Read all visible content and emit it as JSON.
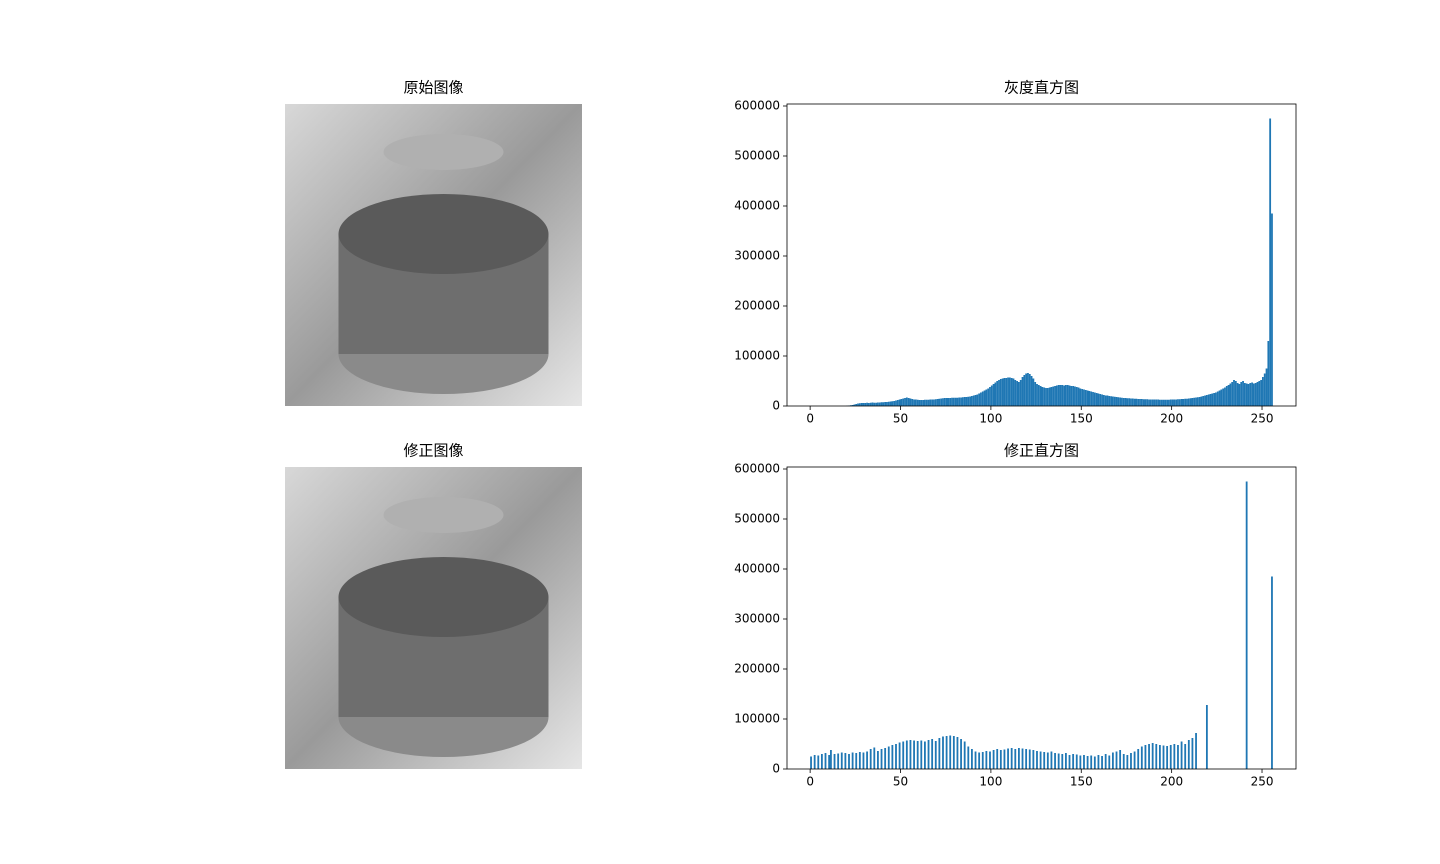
{
  "chart_data": [
    {
      "type": "image",
      "title": "原始图像"
    },
    {
      "type": "histogram",
      "title": "灰度直方图",
      "color": "#1f77b4",
      "bins": [
        0,
        1,
        2,
        3,
        4,
        5,
        6,
        7,
        8,
        9,
        10,
        11,
        12,
        13,
        14,
        15,
        16,
        17,
        18,
        19,
        20,
        21,
        22,
        23,
        24,
        25,
        26,
        27,
        28,
        29,
        30,
        31,
        32,
        33,
        34,
        35,
        36,
        37,
        38,
        39,
        40,
        41,
        42,
        43,
        44,
        45,
        46,
        47,
        48,
        49,
        50,
        51,
        52,
        53,
        54,
        55,
        56,
        57,
        58,
        59,
        60,
        61,
        62,
        63,
        64,
        65,
        66,
        67,
        68,
        69,
        70,
        71,
        72,
        73,
        74,
        75,
        76,
        77,
        78,
        79,
        80,
        81,
        82,
        83,
        84,
        85,
        86,
        87,
        88,
        89,
        90,
        91,
        92,
        93,
        94,
        95,
        96,
        97,
        98,
        99,
        100,
        101,
        102,
        103,
        104,
        105,
        106,
        107,
        108,
        109,
        110,
        111,
        112,
        113,
        114,
        115,
        116,
        117,
        118,
        119,
        120,
        121,
        122,
        123,
        124,
        125,
        126,
        127,
        128,
        129,
        130,
        131,
        132,
        133,
        134,
        135,
        136,
        137,
        138,
        139,
        140,
        141,
        142,
        143,
        144,
        145,
        146,
        147,
        148,
        149,
        150,
        151,
        152,
        153,
        154,
        155,
        156,
        157,
        158,
        159,
        160,
        161,
        162,
        163,
        164,
        165,
        166,
        167,
        168,
        169,
        170,
        171,
        172,
        173,
        174,
        175,
        176,
        177,
        178,
        179,
        180,
        181,
        182,
        183,
        184,
        185,
        186,
        187,
        188,
        189,
        190,
        191,
        192,
        193,
        194,
        195,
        196,
        197,
        198,
        199,
        200,
        201,
        202,
        203,
        204,
        205,
        206,
        207,
        208,
        209,
        210,
        211,
        212,
        213,
        214,
        215,
        216,
        217,
        218,
        219,
        220,
        221,
        222,
        223,
        224,
        225,
        226,
        227,
        228,
        229,
        230,
        231,
        232,
        233,
        234,
        235,
        236,
        237,
        238,
        239,
        240,
        241,
        242,
        243,
        244,
        245,
        246,
        247,
        248,
        249,
        250,
        251,
        252,
        253,
        254,
        255,
        256
      ],
      "values": [
        0,
        0,
        0,
        0,
        0,
        0,
        0,
        0,
        0,
        0,
        0,
        0,
        0,
        0,
        0,
        0,
        0,
        0,
        0,
        0,
        500,
        1000,
        1500,
        2000,
        3000,
        4000,
        5000,
        5500,
        6000,
        6000,
        6000,
        6500,
        6000,
        6500,
        7000,
        6500,
        6500,
        7000,
        7000,
        7500,
        7500,
        8000,
        8000,
        8500,
        9000,
        9500,
        10000,
        11000,
        12000,
        13000,
        14000,
        15000,
        16000,
        17000,
        16000,
        15000,
        14000,
        13000,
        13000,
        12500,
        12000,
        12000,
        12000,
        12500,
        12500,
        12500,
        13000,
        13000,
        13000,
        13500,
        14000,
        14500,
        15000,
        15500,
        16000,
        16000,
        16000,
        16000,
        16500,
        16500,
        16500,
        16500,
        17000,
        17000,
        17500,
        18000,
        18000,
        18500,
        19000,
        20000,
        21000,
        22000,
        23000,
        25000,
        27000,
        29000,
        31000,
        33000,
        35000,
        38000,
        41000,
        44000,
        47000,
        50000,
        52000,
        54000,
        55000,
        56000,
        56000,
        57000,
        57000,
        56000,
        55000,
        52000,
        50000,
        48000,
        52000,
        58000,
        62000,
        65000,
        66000,
        64000,
        60000,
        55000,
        48000,
        44000,
        42000,
        40000,
        38000,
        37000,
        36000,
        36000,
        37000,
        38000,
        39000,
        40000,
        41000,
        42000,
        42000,
        42000,
        41000,
        42000,
        42000,
        41000,
        40000,
        40000,
        39000,
        38000,
        37000,
        35000,
        34000,
        33000,
        32000,
        31000,
        30000,
        29000,
        28000,
        27000,
        26000,
        25000,
        24000,
        23000,
        22000,
        21000,
        21000,
        20000,
        19500,
        19000,
        18500,
        18000,
        17500,
        17000,
        16500,
        16000,
        16000,
        15500,
        15500,
        15000,
        15000,
        14500,
        14500,
        14000,
        14000,
        14000,
        13500,
        13500,
        13500,
        13000,
        13000,
        13000,
        13000,
        13000,
        13000,
        12500,
        12500,
        12500,
        12500,
        12500,
        12500,
        13000,
        13000,
        13000,
        13000,
        13500,
        13500,
        14000,
        14000,
        14500,
        14500,
        15000,
        15500,
        16000,
        16500,
        17000,
        17500,
        18000,
        19000,
        20000,
        21000,
        22000,
        23000,
        24000,
        25000,
        26000,
        27000,
        29000,
        31000,
        33000,
        35000,
        37000,
        40000,
        42000,
        45000,
        48000,
        52000,
        50000,
        46000,
        44000,
        48000,
        50000,
        46000,
        45000,
        44000,
        46000,
        47000,
        45000,
        46000,
        48000,
        50000,
        52000,
        58000,
        65000,
        75000,
        130000,
        575000,
        385000
      ],
      "xlim": [
        -12.8,
        268.8
      ],
      "xticks": [
        0,
        50,
        100,
        150,
        200,
        250
      ],
      "ylim": [
        0,
        604000
      ],
      "yticks": [
        0,
        100000,
        200000,
        300000,
        400000,
        500000,
        600000
      ]
    },
    {
      "type": "image",
      "title": "修正图像"
    },
    {
      "type": "histogram",
      "title": "修正直方图",
      "color": "#1f77b4",
      "bins": [
        0,
        1,
        2,
        3,
        4,
        5,
        6,
        7,
        8,
        9,
        10,
        11,
        12,
        13,
        14,
        15,
        16,
        17,
        18,
        19,
        20,
        21,
        22,
        23,
        24,
        25,
        26,
        27,
        28,
        29,
        30,
        31,
        32,
        33,
        34,
        35,
        36,
        37,
        38,
        39,
        40,
        41,
        42,
        43,
        44,
        45,
        46,
        47,
        48,
        49,
        50,
        51,
        52,
        53,
        54,
        55,
        56,
        57,
        58,
        59,
        60,
        61,
        62,
        63,
        64,
        65,
        66,
        67,
        68,
        69,
        70,
        71,
        72,
        73,
        74,
        75,
        76,
        77,
        78,
        79,
        80,
        81,
        82,
        83,
        84,
        85,
        86,
        87,
        88,
        89,
        90,
        91,
        92,
        93,
        94,
        95,
        96,
        97,
        98,
        99,
        100,
        101,
        102,
        103,
        104,
        105,
        106,
        107,
        108,
        109,
        110,
        111,
        112,
        113,
        114,
        115,
        116,
        117,
        118,
        119,
        120,
        121,
        122,
        123,
        124,
        125,
        126,
        127,
        128,
        129,
        130,
        131,
        132,
        133,
        134,
        135,
        136,
        137,
        138,
        139,
        140,
        141,
        142,
        143,
        144,
        145,
        146,
        147,
        148,
        149,
        150,
        151,
        152,
        153,
        154,
        155,
        156,
        157,
        158,
        159,
        160,
        161,
        162,
        163,
        164,
        165,
        166,
        167,
        168,
        169,
        170,
        171,
        172,
        173,
        174,
        175,
        176,
        177,
        178,
        179,
        180,
        181,
        182,
        183,
        184,
        185,
        186,
        187,
        188,
        189,
        190,
        191,
        192,
        193,
        194,
        195,
        196,
        197,
        198,
        199,
        200,
        201,
        202,
        203,
        204,
        205,
        206,
        207,
        208,
        209,
        210,
        211,
        212,
        213,
        214,
        215,
        216,
        217,
        218,
        219,
        220,
        221,
        222,
        223,
        224,
        225,
        226,
        227,
        228,
        229,
        230,
        231,
        232,
        233,
        234,
        235,
        236,
        237,
        238,
        239,
        240,
        241,
        242,
        243,
        244,
        245,
        246,
        247,
        248,
        249,
        250,
        251,
        252,
        253,
        254,
        255,
        256
      ],
      "values": [
        25000,
        0,
        28000,
        0,
        27000,
        0,
        30000,
        0,
        32000,
        0,
        28000,
        38000,
        0,
        30000,
        0,
        31000,
        0,
        33000,
        0,
        32000,
        0,
        30000,
        0,
        33000,
        0,
        32000,
        0,
        34000,
        0,
        33000,
        0,
        35000,
        0,
        40000,
        0,
        43000,
        0,
        36000,
        0,
        40000,
        0,
        42000,
        0,
        45000,
        0,
        48000,
        0,
        50000,
        0,
        53000,
        0,
        55000,
        0,
        57000,
        0,
        58000,
        0,
        57000,
        0,
        56000,
        0,
        57000,
        0,
        55000,
        0,
        58000,
        0,
        60000,
        0,
        56000,
        0,
        62000,
        0,
        65000,
        0,
        66000,
        0,
        67000,
        0,
        66000,
        0,
        64000,
        0,
        60000,
        0,
        55000,
        0,
        45000,
        0,
        40000,
        0,
        35000,
        0,
        33000,
        0,
        34000,
        0,
        36000,
        0,
        35000,
        0,
        38000,
        0,
        40000,
        0,
        38000,
        0,
        39000,
        0,
        41000,
        0,
        42000,
        0,
        40000,
        0,
        42000,
        0,
        41000,
        0,
        40000,
        0,
        39000,
        0,
        38000,
        0,
        36000,
        0,
        35000,
        0,
        34000,
        0,
        33000,
        0,
        35000,
        0,
        32000,
        0,
        31000,
        0,
        30000,
        0,
        32000,
        0,
        28000,
        0,
        30000,
        0,
        29000,
        0,
        27000,
        0,
        28000,
        0,
        26000,
        0,
        27000,
        0,
        25000,
        0,
        28000,
        0,
        26000,
        0,
        30000,
        0,
        27000,
        0,
        33000,
        0,
        35000,
        0,
        38000,
        0,
        30000,
        0,
        28000,
        0,
        32000,
        0,
        35000,
        0,
        40000,
        0,
        45000,
        0,
        48000,
        0,
        50000,
        0,
        52000,
        0,
        50000,
        0,
        48000,
        0,
        47000,
        0,
        46000,
        0,
        48000,
        0,
        50000,
        0,
        48000,
        0,
        55000,
        0,
        50000,
        0,
        58000,
        0,
        62000,
        0,
        72000,
        0,
        0,
        0,
        0,
        0,
        128000,
        0,
        0,
        0,
        0,
        0,
        0,
        0,
        0,
        0,
        0,
        0,
        0,
        0,
        0,
        0,
        0,
        0,
        0,
        0,
        0,
        0,
        575000,
        0,
        0,
        0,
        0,
        0,
        0,
        0,
        0,
        0,
        0,
        0,
        0,
        0,
        385000
      ],
      "xlim": [
        -12.8,
        268.8
      ],
      "xticks": [
        0,
        50,
        100,
        150,
        200,
        250
      ],
      "ylim": [
        0,
        604000
      ],
      "yticks": [
        0,
        100000,
        200000,
        300000,
        400000,
        500000,
        600000
      ]
    }
  ]
}
